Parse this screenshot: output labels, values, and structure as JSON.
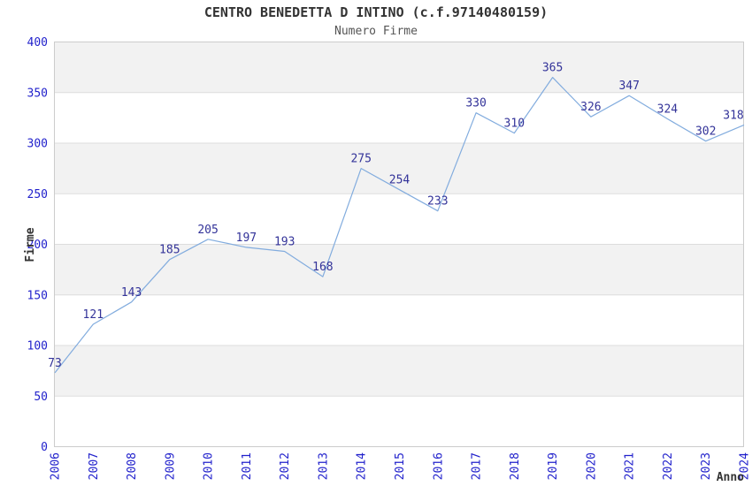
{
  "chart_data": {
    "type": "line",
    "title": "CENTRO BENEDETTA D INTINO (c.f.97140480159)",
    "subtitle": "Numero Firme",
    "xlabel": "Anno",
    "ylabel": "Firme",
    "categories": [
      "2006",
      "2007",
      "2008",
      "2009",
      "2010",
      "2011",
      "2012",
      "2013",
      "2014",
      "2015",
      "2016",
      "2017",
      "2018",
      "2019",
      "2020",
      "2021",
      "2022",
      "2023",
      "2024"
    ],
    "values": [
      73,
      121,
      143,
      185,
      205,
      197,
      193,
      168,
      275,
      254,
      233,
      330,
      310,
      365,
      326,
      347,
      324,
      302,
      318
    ],
    "ylim": [
      0,
      400
    ],
    "yticks": [
      0,
      50,
      100,
      150,
      200,
      250,
      300,
      350,
      400
    ],
    "grid": true,
    "legend_position": "none",
    "band_pattern": "alternating-horizontal",
    "colors": {
      "line": "#82ACDE",
      "point_label": "#333399",
      "tick_label": "#2222CC",
      "band": "#F2F2F2",
      "plot_border": "#CCCCCC",
      "gridline": "#DDDDDD",
      "title": "#333333",
      "subtitle": "#555555",
      "axis_title": "#333333",
      "background": "#FFFFFF"
    }
  }
}
